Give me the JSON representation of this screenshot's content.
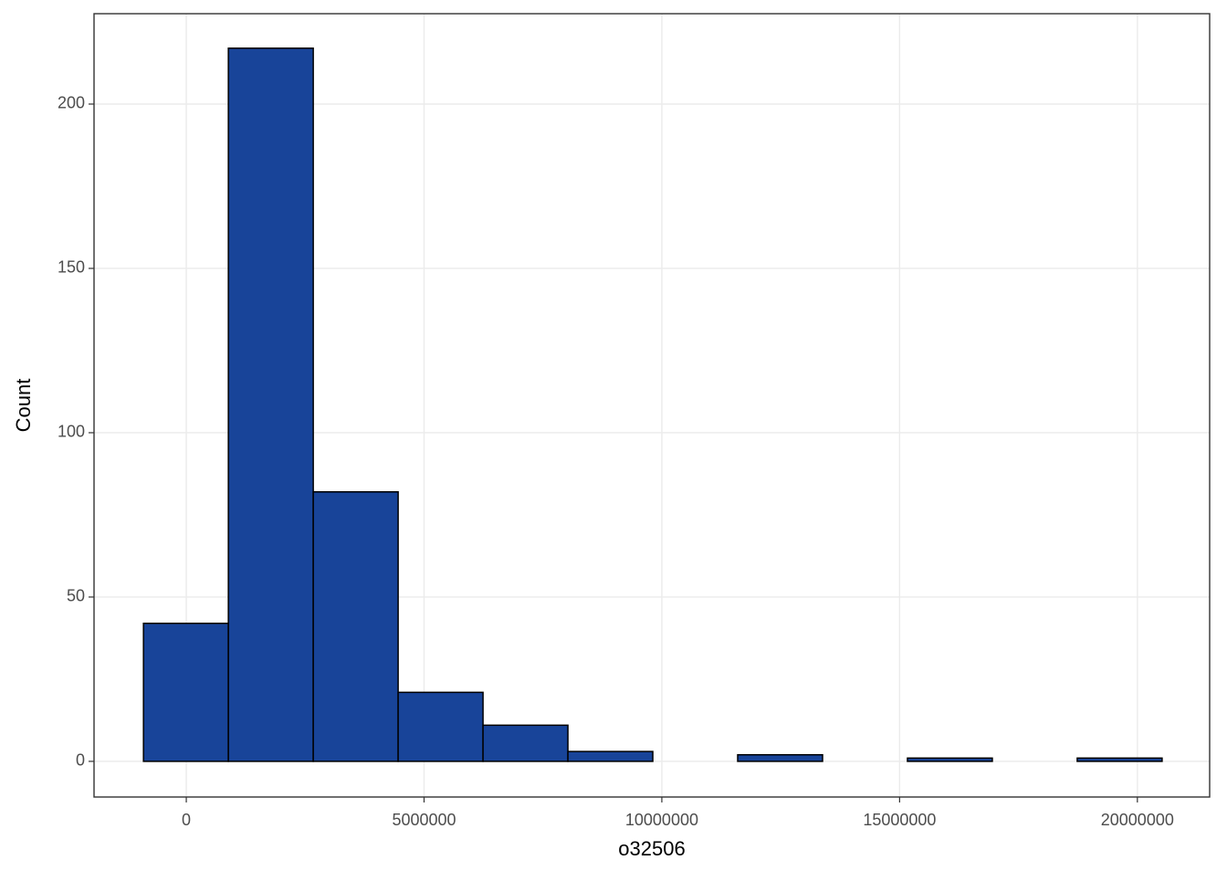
{
  "chart_data": {
    "type": "histogram",
    "x_label": "o32506",
    "y_label": "Count",
    "bins": [
      -900000,
      885000,
      2670000,
      4455000,
      6240000,
      8025000,
      9810000,
      11595000,
      13380000,
      15165000,
      16950000,
      18735000,
      20520000
    ],
    "values": [
      42,
      217,
      82,
      21,
      11,
      3,
      0,
      2,
      0,
      1,
      0,
      1
    ],
    "color": "#184499",
    "edge_color": "#000000",
    "xlim": [
      -1940000,
      21520000
    ],
    "xticks": [
      0,
      5000000,
      10000000,
      15000000,
      20000000
    ],
    "ylim": [
      -10.85,
      227.5
    ],
    "yticks": [
      0,
      50,
      100,
      150,
      200
    ],
    "grid": true
  }
}
